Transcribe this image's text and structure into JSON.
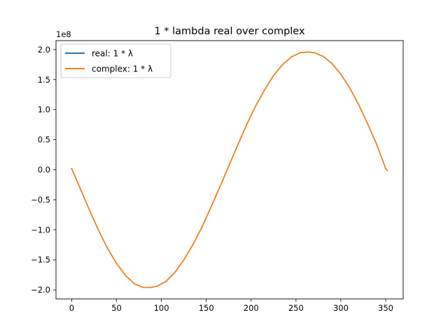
{
  "chart_data": {
    "type": "line",
    "title": "1 * lambda real over complex",
    "xlabel": "",
    "ylabel": "",
    "y_offset_label": "1e8",
    "y_scale": 100000000,
    "xlim": [
      -17.5,
      369.5
    ],
    "ylim": [
      -2.15,
      2.15
    ],
    "x_ticks": [
      0,
      50,
      100,
      150,
      200,
      250,
      300,
      350
    ],
    "y_ticks": [
      -2.0,
      -1.5,
      -1.0,
      -0.5,
      0.0,
      0.5,
      1.0,
      1.5,
      2.0
    ],
    "y_tick_labels": [
      "−2.0",
      "−1.5",
      "−1.0",
      "−0.5",
      "0.0",
      "0.5",
      "1.0",
      "1.5",
      "2.0"
    ],
    "grid": false,
    "legend_position": "top-left",
    "series": [
      {
        "name": "real: 1 * λ",
        "color": "#1f77b4",
        "x": [
          0,
          10,
          20,
          30,
          40,
          50,
          60,
          70,
          80,
          87.5,
          95,
          105,
          115,
          125,
          135,
          145,
          155,
          165,
          175,
          185,
          195,
          205,
          215,
          225,
          235,
          245,
          255,
          263,
          270,
          280,
          290,
          300,
          310,
          320,
          330,
          340,
          345,
          348,
          349.5,
          351,
          352
        ],
        "values": [
          0.02,
          -0.33,
          -0.68,
          -1.01,
          -1.31,
          -1.56,
          -1.76,
          -1.9,
          -1.96,
          -1.96,
          -1.94,
          -1.86,
          -1.71,
          -1.5,
          -1.25,
          -0.96,
          -0.63,
          -0.29,
          0.06,
          0.41,
          0.75,
          1.06,
          1.33,
          1.57,
          1.75,
          1.88,
          1.95,
          1.96,
          1.95,
          1.89,
          1.77,
          1.59,
          1.36,
          1.08,
          0.76,
          0.42,
          0.22,
          0.1,
          0.03,
          0.0,
          -0.01
        ]
      },
      {
        "name": "complex: 1 * λ",
        "color": "#ff7f0e",
        "x": [
          0,
          10,
          20,
          30,
          40,
          50,
          60,
          70,
          80,
          87.5,
          95,
          105,
          115,
          125,
          135,
          145,
          155,
          165,
          175,
          185,
          195,
          205,
          215,
          225,
          235,
          245,
          255,
          263,
          270,
          280,
          290,
          300,
          310,
          320,
          330,
          340,
          345,
          348,
          349.5,
          351,
          352
        ],
        "values": [
          0.02,
          -0.33,
          -0.68,
          -1.01,
          -1.31,
          -1.56,
          -1.76,
          -1.9,
          -1.96,
          -1.96,
          -1.94,
          -1.86,
          -1.71,
          -1.5,
          -1.25,
          -0.96,
          -0.63,
          -0.29,
          0.06,
          0.41,
          0.75,
          1.06,
          1.33,
          1.57,
          1.75,
          1.88,
          1.95,
          1.96,
          1.95,
          1.89,
          1.77,
          1.59,
          1.36,
          1.08,
          0.76,
          0.42,
          0.22,
          0.1,
          0.03,
          0.0,
          -0.01
        ]
      }
    ]
  }
}
